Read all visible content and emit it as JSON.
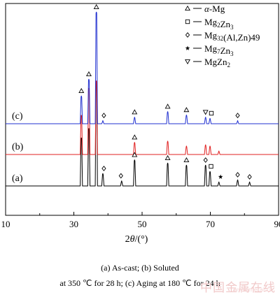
{
  "chart_data": {
    "type": "line",
    "title": "",
    "xlabel": "2θ/(°)",
    "ylabel": "",
    "xlim": [
      10,
      90
    ],
    "xticks": [
      10,
      30,
      50,
      70,
      90
    ],
    "grid": false,
    "legend_position": "top-right",
    "legend": [
      {
        "marker": "triangle-up",
        "label": "α-Mg"
      },
      {
        "marker": "square",
        "label": "Mg2Zn3"
      },
      {
        "marker": "diamond",
        "label": "Mg32(Al,Zn)49"
      },
      {
        "marker": "star",
        "label": "Mg7Zn3"
      },
      {
        "marker": "triangle-down",
        "label": "MgZn2"
      }
    ],
    "series": [
      {
        "name": "(a)",
        "color": "#000000",
        "peaks": [
          {
            "x": 32.2,
            "h": 0.46
          },
          {
            "x": 34.4,
            "h": 0.55
          },
          {
            "x": 36.6,
            "h": 1.0
          },
          {
            "x": 38.5,
            "h": 0.12
          },
          {
            "x": 44.0,
            "h": 0.05
          },
          {
            "x": 47.8,
            "h": 0.25
          },
          {
            "x": 57.5,
            "h": 0.22
          },
          {
            "x": 63.0,
            "h": 0.2
          },
          {
            "x": 68.6,
            "h": 0.2
          },
          {
            "x": 69.9,
            "h": 0.14
          },
          {
            "x": 72.5,
            "h": 0.04
          },
          {
            "x": 78.0,
            "h": 0.06
          },
          {
            "x": 81.5,
            "h": 0.04
          }
        ],
        "markers": [
          {
            "x": 38.8,
            "type": "diamond"
          },
          {
            "x": 43.8,
            "type": "diamond"
          },
          {
            "x": 47.8,
            "type": "triangle-up"
          },
          {
            "x": 57.5,
            "type": "triangle-up"
          },
          {
            "x": 63.0,
            "type": "triangle-up"
          },
          {
            "x": 68.6,
            "type": "diamond"
          },
          {
            "x": 70.2,
            "type": "square"
          },
          {
            "x": 73.0,
            "type": "star"
          },
          {
            "x": 78.0,
            "type": "diamond"
          },
          {
            "x": 81.5,
            "type": "diamond"
          }
        ]
      },
      {
        "name": "(b)",
        "color": "#e02020",
        "peaks": [
          {
            "x": 32.2,
            "h": 0.32
          },
          {
            "x": 34.4,
            "h": 0.54
          },
          {
            "x": 36.6,
            "h": 0.6
          },
          {
            "x": 47.8,
            "h": 0.1
          },
          {
            "x": 57.5,
            "h": 0.11
          },
          {
            "x": 63.0,
            "h": 0.07
          },
          {
            "x": 68.6,
            "h": 0.08
          },
          {
            "x": 69.9,
            "h": 0.07
          },
          {
            "x": 72.5,
            "h": 0.03
          }
        ],
        "markers": [
          {
            "x": 47.8,
            "type": "triangle-up"
          }
        ]
      },
      {
        "name": "(c)",
        "color": "#2030d0",
        "peaks": [
          {
            "x": 32.2,
            "h": 0.25
          },
          {
            "x": 34.4,
            "h": 0.4
          },
          {
            "x": 36.6,
            "h": 1.0
          },
          {
            "x": 38.5,
            "h": 0.03
          },
          {
            "x": 47.8,
            "h": 0.06
          },
          {
            "x": 57.5,
            "h": 0.11
          },
          {
            "x": 63.0,
            "h": 0.08
          },
          {
            "x": 68.6,
            "h": 0.06
          },
          {
            "x": 69.9,
            "h": 0.05
          },
          {
            "x": 78.0,
            "h": 0.03
          }
        ],
        "markers": [
          {
            "x": 32.2,
            "type": "triangle-up"
          },
          {
            "x": 34.4,
            "type": "triangle-up"
          },
          {
            "x": 36.6,
            "type": "triangle-up"
          },
          {
            "x": 38.8,
            "type": "diamond"
          },
          {
            "x": 47.8,
            "type": "triangle-up"
          },
          {
            "x": 57.5,
            "type": "triangle-up"
          },
          {
            "x": 63.0,
            "type": "triangle-up"
          },
          {
            "x": 68.6,
            "type": "triangle-down"
          },
          {
            "x": 70.3,
            "type": "square"
          },
          {
            "x": 78.0,
            "type": "diamond"
          }
        ]
      }
    ]
  },
  "caption_line1": "(a) As-cast; (b) Soluted",
  "caption_line2": "at 350 ℃ for 28 h; (c) Aging at 180 ℃ for 24 h",
  "watermark": "中国金属在线",
  "watermark_url": "www.metal.cn"
}
